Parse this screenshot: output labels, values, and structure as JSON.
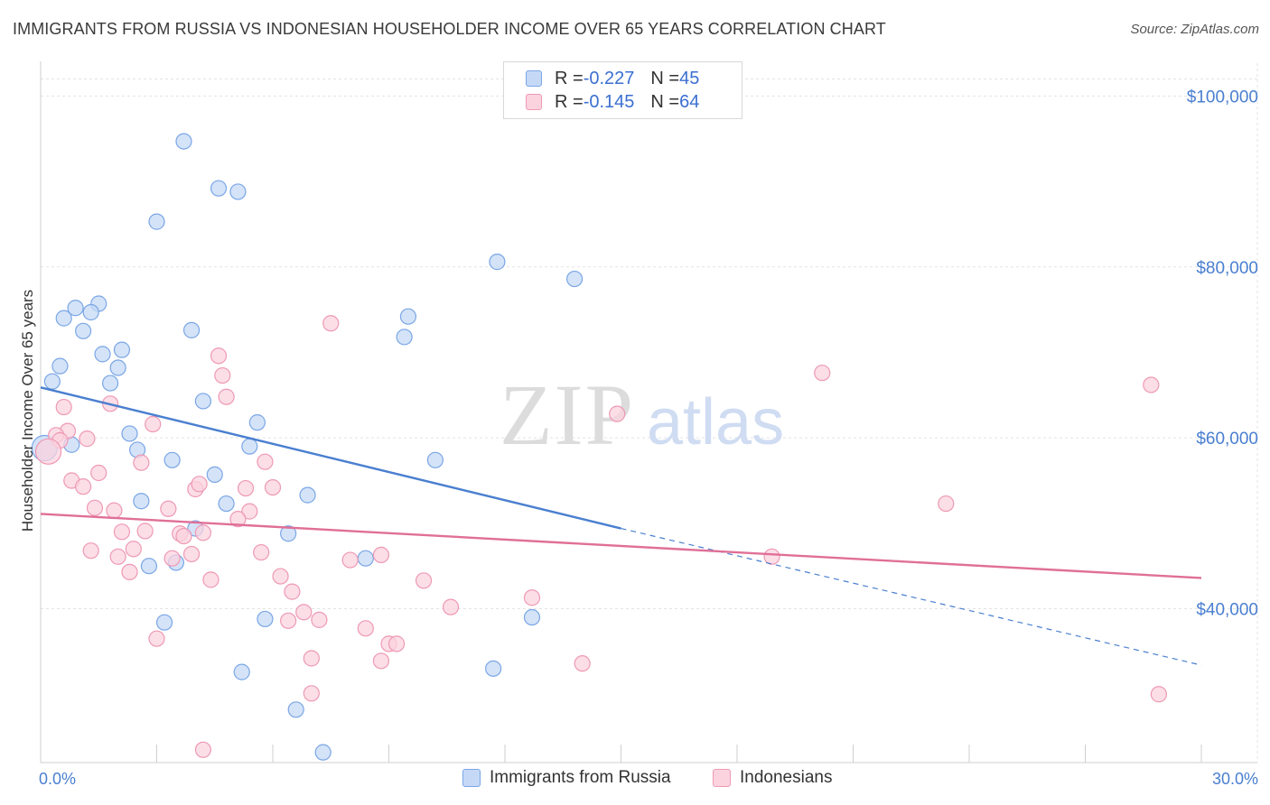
{
  "title": "IMMIGRANTS FROM RUSSIA VS INDONESIAN HOUSEHOLDER INCOME OVER 65 YEARS CORRELATION CHART",
  "source": "Source: ZipAtlas.com",
  "watermark": {
    "zip": "ZIP",
    "atlas": "atlas"
  },
  "legend": {
    "rows": [
      {
        "r_label": "R = ",
        "r_value": "-0.227",
        "n_label": "N = ",
        "n_value": "45",
        "color": "#7aa6e6",
        "fill": "#c5d9f6"
      },
      {
        "r_label": "R = ",
        "r_value": "-0.145",
        "n_label": "N = ",
        "n_value": "64",
        "color": "#ee99b4",
        "fill": "#fbd3df"
      }
    ]
  },
  "bottom_legend": [
    {
      "label": "Immigrants from Russia",
      "color": "#7aa6e6",
      "fill": "#c5d9f6"
    },
    {
      "label": "Indonesians",
      "color": "#ee99b4",
      "fill": "#fbd3df"
    }
  ],
  "chart_data": {
    "type": "scatter",
    "title": "IMMIGRANTS FROM RUSSIA VS INDONESIAN HOUSEHOLDER INCOME OVER 65 YEARS CORRELATION CHART",
    "xlabel": "",
    "ylabel": "Householder Income Over 65 years",
    "xlim": [
      0,
      30
    ],
    "ylim": [
      22000,
      103000
    ],
    "x_tick_labels": [
      "0.0%",
      "30.0%"
    ],
    "y_ticks": [
      40000,
      60000,
      80000,
      100000
    ],
    "y_tick_labels": [
      "$40,000",
      "$60,000",
      "$80,000",
      "$100,000"
    ],
    "grid": true,
    "legend_position": "top-center",
    "series": [
      {
        "name": "Immigrants from Russia",
        "color": "#4a7fd0",
        "point_fill": "#c5d9f6",
        "point_stroke": "#7aa6e6",
        "points": [
          [
            3.7,
            94.7
          ],
          [
            4.6,
            89.2
          ],
          [
            5.1,
            88.8
          ],
          [
            3.0,
            85.3
          ],
          [
            11.8,
            80.6
          ],
          [
            13.8,
            78.6
          ],
          [
            0.9,
            75.2
          ],
          [
            1.5,
            75.7
          ],
          [
            1.3,
            74.7
          ],
          [
            0.6,
            74.0
          ],
          [
            9.5,
            74.2
          ],
          [
            1.1,
            72.5
          ],
          [
            3.9,
            72.6
          ],
          [
            9.4,
            71.8
          ],
          [
            2.1,
            70.3
          ],
          [
            1.6,
            69.8
          ],
          [
            0.5,
            68.4
          ],
          [
            2.0,
            68.2
          ],
          [
            0.3,
            66.6
          ],
          [
            1.8,
            66.4
          ],
          [
            4.2,
            64.3
          ],
          [
            5.6,
            61.8
          ],
          [
            2.3,
            60.5
          ],
          [
            0.8,
            59.2
          ],
          [
            5.4,
            59.0
          ],
          [
            2.5,
            58.6
          ],
          [
            3.4,
            57.4
          ],
          [
            10.2,
            57.4
          ],
          [
            4.5,
            55.7
          ],
          [
            6.9,
            53.3
          ],
          [
            2.6,
            52.6
          ],
          [
            4.8,
            52.3
          ],
          [
            4.0,
            49.4
          ],
          [
            6.4,
            48.8
          ],
          [
            8.4,
            45.9
          ],
          [
            2.8,
            45.0
          ],
          [
            3.5,
            45.4
          ],
          [
            3.2,
            38.4
          ],
          [
            5.8,
            38.8
          ],
          [
            12.7,
            39.0
          ],
          [
            5.2,
            32.6
          ],
          [
            11.7,
            33.0
          ],
          [
            6.6,
            28.2
          ],
          [
            7.3,
            23.2
          ],
          [
            0.1,
            58.8
          ]
        ],
        "trend": {
          "x": [
            0.0,
            15.0
          ],
          "y": [
            65.9,
            49.4
          ],
          "dashed_to": [
            30.0,
            33.4
          ]
        }
      },
      {
        "name": "Indonesians",
        "color": "#e06f97",
        "point_fill": "#fbd3df",
        "point_stroke": "#ee99b4",
        "points": [
          [
            7.5,
            73.4
          ],
          [
            20.2,
            67.6
          ],
          [
            28.7,
            66.2
          ],
          [
            4.6,
            69.6
          ],
          [
            4.7,
            67.3
          ],
          [
            4.8,
            64.8
          ],
          [
            1.8,
            64.0
          ],
          [
            0.6,
            63.6
          ],
          [
            14.9,
            62.8
          ],
          [
            2.9,
            61.6
          ],
          [
            0.7,
            60.8
          ],
          [
            0.4,
            60.3
          ],
          [
            0.5,
            59.7
          ],
          [
            2.6,
            57.1
          ],
          [
            5.8,
            57.2
          ],
          [
            1.5,
            55.9
          ],
          [
            0.8,
            55.0
          ],
          [
            1.1,
            54.3
          ],
          [
            4.0,
            54.0
          ],
          [
            5.3,
            54.1
          ],
          [
            6.0,
            54.2
          ],
          [
            4.1,
            54.6
          ],
          [
            23.4,
            52.3
          ],
          [
            1.4,
            51.8
          ],
          [
            1.9,
            51.5
          ],
          [
            3.3,
            51.7
          ],
          [
            5.4,
            51.4
          ],
          [
            5.1,
            50.5
          ],
          [
            2.1,
            49.0
          ],
          [
            2.7,
            49.1
          ],
          [
            3.6,
            48.8
          ],
          [
            4.2,
            48.9
          ],
          [
            3.7,
            48.5
          ],
          [
            1.3,
            46.8
          ],
          [
            2.4,
            47.0
          ],
          [
            5.7,
            46.6
          ],
          [
            3.9,
            46.4
          ],
          [
            8.0,
            45.7
          ],
          [
            8.8,
            46.3
          ],
          [
            2.0,
            46.1
          ],
          [
            3.4,
            45.9
          ],
          [
            18.9,
            46.1
          ],
          [
            2.3,
            44.3
          ],
          [
            6.2,
            43.8
          ],
          [
            4.4,
            43.4
          ],
          [
            9.9,
            43.3
          ],
          [
            6.5,
            42.0
          ],
          [
            12.7,
            41.3
          ],
          [
            10.6,
            40.2
          ],
          [
            6.8,
            39.6
          ],
          [
            6.4,
            38.6
          ],
          [
            7.2,
            38.7
          ],
          [
            8.4,
            37.7
          ],
          [
            3.0,
            36.5
          ],
          [
            9.0,
            35.9
          ],
          [
            9.2,
            35.9
          ],
          [
            7.0,
            34.2
          ],
          [
            8.8,
            33.9
          ],
          [
            14.0,
            33.6
          ],
          [
            7.0,
            30.1
          ],
          [
            28.9,
            30.0
          ],
          [
            4.2,
            23.5
          ],
          [
            1.2,
            59.9
          ],
          [
            0.2,
            58.4
          ]
        ],
        "trend": {
          "x": [
            0.0,
            30.0
          ],
          "y": [
            51.1,
            43.6
          ]
        }
      }
    ]
  }
}
